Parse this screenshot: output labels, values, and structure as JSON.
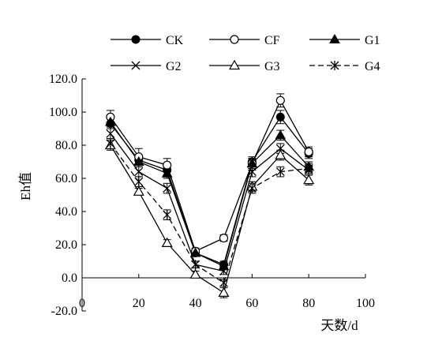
{
  "chart_data": {
    "type": "line",
    "xlabel": "天数/d",
    "ylabel": "Eh值",
    "xlim": [
      0,
      100
    ],
    "ylim": [
      -20,
      120
    ],
    "x_ticks": [
      "0",
      "20",
      "40",
      "60",
      "80",
      "100"
    ],
    "y_ticks": [
      "-20.0",
      "0.0",
      "20.0",
      "40.0",
      "60.0",
      "80.0",
      "100.0",
      "120.0"
    ],
    "x": [
      10,
      20,
      30,
      40,
      50,
      60,
      70,
      80
    ],
    "legend_position": "top",
    "series": [
      {
        "name": "CK",
        "marker": "filled-circle",
        "dash": "solid",
        "values": [
          93,
          71,
          65,
          15,
          8,
          70,
          97,
          75
        ],
        "errors": [
          3,
          3,
          3,
          2,
          2,
          2,
          4,
          3
        ]
      },
      {
        "name": "CF",
        "marker": "open-circle",
        "dash": "solid",
        "values": [
          97,
          73,
          68,
          16,
          24,
          69,
          107,
          76
        ],
        "errors": [
          4,
          5,
          4,
          2,
          2,
          4,
          4,
          3
        ]
      },
      {
        "name": "G1",
        "marker": "filled-triangle",
        "dash": "solid",
        "values": [
          94,
          70,
          63,
          15,
          7,
          69,
          86,
          67
        ],
        "errors": [
          3,
          3,
          3,
          2,
          2,
          3,
          3,
          3
        ]
      },
      {
        "name": "G2",
        "marker": "x",
        "dash": "solid",
        "values": [
          87,
          64,
          54,
          8,
          4,
          64,
          78,
          65
        ],
        "errors": [
          3,
          3,
          3,
          2,
          2,
          3,
          3,
          3
        ]
      },
      {
        "name": "G3",
        "marker": "open-triangle",
        "dash": "solid",
        "values": [
          80,
          52,
          21,
          2,
          -9,
          55,
          74,
          59
        ],
        "errors": [
          3,
          2,
          2,
          2,
          3,
          3,
          3,
          3
        ]
      },
      {
        "name": "G4",
        "marker": "asterisk",
        "dash": "dashed",
        "values": [
          81,
          58,
          38,
          8,
          -3,
          54,
          64,
          66
        ],
        "errors": [
          3,
          3,
          3,
          2,
          2,
          3,
          3,
          3
        ]
      }
    ]
  }
}
